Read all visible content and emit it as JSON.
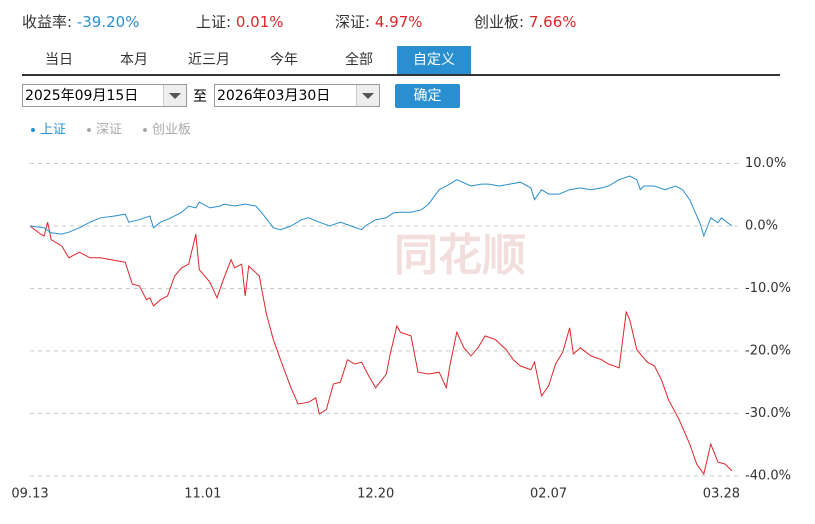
{
  "header": {
    "stats": [
      {
        "label": "收益率:",
        "value": "-39.20%"
      },
      {
        "label": "上证:",
        "value": "0.01%"
      },
      {
        "label": "深证:",
        "value": "4.97%"
      },
      {
        "label": "创业板:",
        "value": "7.66%"
      }
    ]
  },
  "tabs": [
    "当日",
    "本月",
    "近三月",
    "今年",
    "全部",
    "自定义"
  ],
  "active_tab": 5,
  "date_range": {
    "start": "2025年09月15日",
    "separator": "至",
    "end": "2026年03月30日",
    "button": "确定"
  },
  "chart_data": {
    "type": "line",
    "watermark": "同花顺",
    "series": [
      {
        "name": "上证",
        "color": "#2a8fd0",
        "x": [
          0,
          4,
          6,
          9,
          11,
          14,
          17,
          20,
          24,
          27,
          28,
          31,
          34,
          35,
          37,
          40,
          43,
          45,
          47,
          48,
          51,
          54,
          55,
          58,
          61,
          64,
          66,
          69,
          71,
          74,
          77,
          79,
          82,
          85,
          88,
          91,
          94,
          95,
          98,
          101,
          103,
          105,
          108,
          111,
          113,
          116,
          119,
          121,
          125,
          128,
          130,
          133,
          136,
          139,
          142,
          143,
          145,
          147,
          150,
          153,
          156,
          159,
          162,
          164,
          167,
          170,
          172,
          173,
          174,
          177,
          180,
          183,
          185,
          187,
          190,
          191,
          193,
          195,
          196,
          199
        ],
        "values": [
          0,
          -0.3,
          -1.1,
          -1.3,
          -1.0,
          -0.3,
          0.6,
          1.3,
          1.6,
          1.9,
          0.6,
          1.0,
          1.6,
          -0.3,
          0.6,
          1.3,
          2.2,
          3.2,
          2.9,
          3.8,
          2.9,
          3.2,
          3.5,
          3.2,
          3.5,
          3.2,
          1.9,
          -0.3,
          -0.6,
          0.0,
          1.0,
          1.3,
          0.6,
          0.0,
          0.6,
          0.0,
          -0.6,
          0.0,
          1.0,
          1.3,
          2.1,
          2.2,
          2.2,
          2.6,
          3.5,
          5.8,
          6.7,
          7.4,
          6.4,
          6.7,
          6.7,
          6.4,
          6.7,
          7.0,
          6.1,
          4.2,
          5.8,
          5.1,
          5.1,
          5.8,
          6.1,
          5.8,
          6.1,
          6.4,
          7.4,
          8.0,
          7.4,
          5.8,
          6.4,
          6.4,
          5.8,
          6.4,
          5.8,
          4.2,
          0.3,
          -1.6,
          1.3,
          0.5,
          1.3,
          0.0
        ]
      },
      {
        "color": "#e0262b",
        "x": [
          0,
          3,
          4,
          5,
          6,
          9,
          11,
          14,
          17,
          20,
          23,
          27,
          29,
          31,
          33,
          34,
          35,
          37,
          39,
          41,
          43,
          45,
          47,
          48,
          51,
          53,
          55,
          57,
          58,
          60,
          61,
          62,
          65,
          67,
          69,
          71,
          74,
          76,
          79,
          81,
          82,
          84,
          86,
          88,
          90,
          92,
          94,
          96,
          98,
          101,
          102,
          104,
          105,
          108,
          110,
          113,
          116,
          118,
          119,
          121,
          123,
          125,
          127,
          129,
          132,
          135,
          137,
          139,
          142,
          143,
          145,
          147,
          149,
          151,
          153,
          154,
          156,
          159,
          162,
          164,
          167,
          169,
          170,
          172,
          173,
          175,
          177,
          179,
          181,
          184,
          187,
          189,
          191,
          193,
          195,
          197,
          199
        ],
        "values": [
          0,
          -1.3,
          -1.6,
          0.6,
          -2.2,
          -3.2,
          -5.1,
          -4.2,
          -5.1,
          -5.1,
          -5.4,
          -5.8,
          -9.3,
          -9.6,
          -11.8,
          -11.5,
          -12.8,
          -11.8,
          -11.2,
          -8.0,
          -6.7,
          -6.1,
          -1.3,
          -7.0,
          -9.0,
          -11.5,
          -8.3,
          -5.4,
          -6.7,
          -6.1,
          -11.2,
          -6.4,
          -8.0,
          -14.1,
          -18.2,
          -21.4,
          -25.9,
          -28.5,
          -28.2,
          -27.5,
          -30.1,
          -29.4,
          -25.3,
          -25.0,
          -21.4,
          -22.1,
          -21.8,
          -24.0,
          -25.9,
          -23.7,
          -20.8,
          -16.0,
          -17.0,
          -17.6,
          -23.4,
          -23.7,
          -23.4,
          -25.9,
          -22.4,
          -17.0,
          -19.5,
          -20.8,
          -19.5,
          -17.6,
          -18.2,
          -19.8,
          -21.4,
          -22.4,
          -23.0,
          -21.8,
          -27.2,
          -25.6,
          -22.1,
          -20.2,
          -16.3,
          -20.5,
          -19.5,
          -20.8,
          -21.4,
          -22.1,
          -22.7,
          -13.8,
          -15.0,
          -19.8,
          -20.5,
          -21.8,
          -22.4,
          -24.6,
          -27.8,
          -31.0,
          -34.9,
          -38.1,
          -39.7,
          -34.9,
          -37.8,
          -38.1,
          -39.2
        ]
      }
    ],
    "legend_inactive": [
      "深证",
      "创业板"
    ],
    "xlim": [
      0,
      199
    ],
    "xticks": [
      {
        "value": 0,
        "label": "09.13"
      },
      {
        "value": 49,
        "label": "11.01"
      },
      {
        "value": 98,
        "label": "12.20"
      },
      {
        "value": 147,
        "label": "02.07"
      },
      {
        "value": 196,
        "label": "03.28"
      }
    ],
    "ylim": [
      -40.5,
      12
    ],
    "yticks": [
      {
        "value": 10,
        "label": "10.0%"
      },
      {
        "value": 0,
        "label": "0.0%"
      },
      {
        "value": -10,
        "label": "-10.0%"
      },
      {
        "value": -20,
        "label": "-20.0%"
      },
      {
        "value": -30,
        "label": "-30.0%"
      },
      {
        "value": -40,
        "label": "-40.0%"
      }
    ],
    "grid": true
  }
}
